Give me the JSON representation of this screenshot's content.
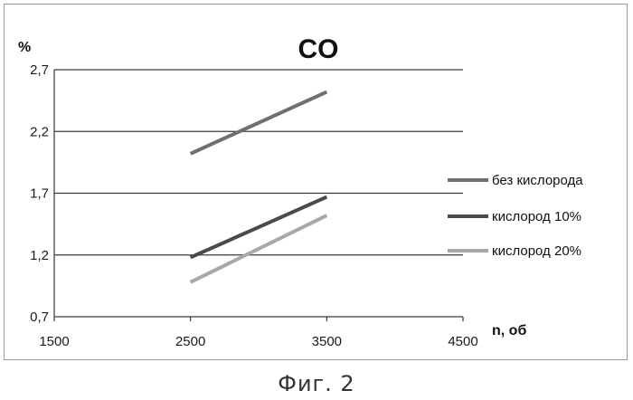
{
  "chart_data": {
    "type": "line",
    "title": "CO",
    "ylabel": "%",
    "xlabel": "n, об",
    "xlim": [
      1500,
      4500
    ],
    "ylim": [
      0.7,
      2.7
    ],
    "x_ticks": [
      {
        "value": 1500,
        "label": "1500"
      },
      {
        "value": 2500,
        "label": "2500"
      },
      {
        "value": 3500,
        "label": "3500"
      },
      {
        "value": 4500,
        "label": "4500"
      }
    ],
    "y_ticks": [
      {
        "value": 0.7,
        "label": "0,7"
      },
      {
        "value": 1.2,
        "label": "1,2"
      },
      {
        "value": 1.7,
        "label": "1,7"
      },
      {
        "value": 2.2,
        "label": "2,2"
      },
      {
        "value": 2.7,
        "label": "2,7"
      }
    ],
    "grid": "horizontal",
    "legend_position": "right",
    "series": [
      {
        "name": "без кислорода",
        "color": "#6f6f6f",
        "x": [
          2500,
          3500
        ],
        "y": [
          2.02,
          2.52
        ]
      },
      {
        "name": "кислород 10%",
        "color": "#4a4a4a",
        "x": [
          2500,
          3500
        ],
        "y": [
          1.18,
          1.67
        ]
      },
      {
        "name": "кислород 20%",
        "color": "#a8a8a8",
        "x": [
          2500,
          3500
        ],
        "y": [
          0.98,
          1.52
        ]
      }
    ]
  },
  "caption": "Фиг. 2"
}
